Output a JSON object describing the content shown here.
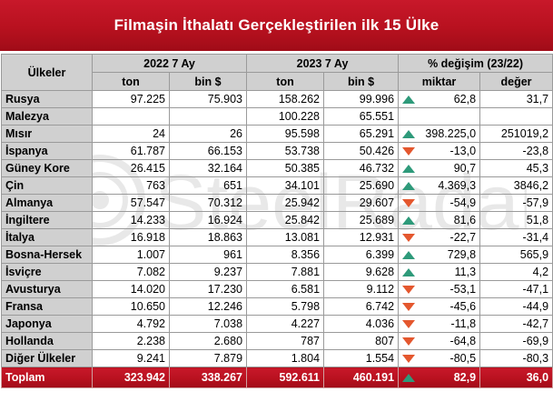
{
  "title": "Filmaşin İthalatı Gerçekleştirilen ilk 15 Ülke",
  "header": {
    "countries": "Ülkeler",
    "period1": "2022 7 Ay",
    "period2": "2023 7 Ay",
    "change": "% değişim (23/22)",
    "ton1": "ton",
    "usd1": "bin $",
    "ton2": "ton",
    "usd2": "bin $",
    "qty": "miktar",
    "val": "değer"
  },
  "rows": [
    {
      "name": "Rusya",
      "t22": "97.225",
      "u22": "75.903",
      "t23": "158.262",
      "u23": "99.996",
      "trend": "up",
      "qty": "62,8",
      "val": "31,7"
    },
    {
      "name": "Malezya",
      "t22": "",
      "u22": "",
      "t23": "100.228",
      "u23": "65.551",
      "trend": "none",
      "qty": "",
      "val": ""
    },
    {
      "name": "Mısır",
      "t22": "24",
      "u22": "26",
      "t23": "95.598",
      "u23": "65.291",
      "trend": "up",
      "qty": "398.225,0",
      "val": "251019,2"
    },
    {
      "name": "İspanya",
      "t22": "61.787",
      "u22": "66.153",
      "t23": "53.738",
      "u23": "50.426",
      "trend": "down",
      "qty": "-13,0",
      "val": "-23,8"
    },
    {
      "name": "Güney Kore",
      "t22": "26.415",
      "u22": "32.164",
      "t23": "50.385",
      "u23": "46.732",
      "trend": "up",
      "qty": "90,7",
      "val": "45,3"
    },
    {
      "name": "Çin",
      "t22": "763",
      "u22": "651",
      "t23": "34.101",
      "u23": "25.690",
      "trend": "up",
      "qty": "4.369,3",
      "val": "3846,2"
    },
    {
      "name": "Almanya",
      "t22": "57.547",
      "u22": "70.312",
      "t23": "25.942",
      "u23": "29.607",
      "trend": "down",
      "qty": "-54,9",
      "val": "-57,9"
    },
    {
      "name": "İngiltere",
      "t22": "14.233",
      "u22": "16.924",
      "t23": "25.842",
      "u23": "25.689",
      "trend": "up",
      "qty": "81,6",
      "val": "51,8"
    },
    {
      "name": "İtalya",
      "t22": "16.918",
      "u22": "18.863",
      "t23": "13.081",
      "u23": "12.931",
      "trend": "down",
      "qty": "-22,7",
      "val": "-31,4"
    },
    {
      "name": "Bosna-Hersek",
      "t22": "1.007",
      "u22": "961",
      "t23": "8.356",
      "u23": "6.399",
      "trend": "up",
      "qty": "729,8",
      "val": "565,9"
    },
    {
      "name": "İsviçre",
      "t22": "7.082",
      "u22": "9.237",
      "t23": "7.881",
      "u23": "9.628",
      "trend": "up",
      "qty": "11,3",
      "val": "4,2"
    },
    {
      "name": "Avusturya",
      "t22": "14.020",
      "u22": "17.230",
      "t23": "6.581",
      "u23": "9.112",
      "trend": "down",
      "qty": "-53,1",
      "val": "-47,1"
    },
    {
      "name": "Fransa",
      "t22": "10.650",
      "u22": "12.246",
      "t23": "5.798",
      "u23": "6.742",
      "trend": "down",
      "qty": "-45,6",
      "val": "-44,9"
    },
    {
      "name": "Japonya",
      "t22": "4.792",
      "u22": "7.038",
      "t23": "4.227",
      "u23": "4.036",
      "trend": "down",
      "qty": "-11,8",
      "val": "-42,7"
    },
    {
      "name": "Hollanda",
      "t22": "2.238",
      "u22": "2.680",
      "t23": "787",
      "u23": "807",
      "trend": "down",
      "qty": "-64,8",
      "val": "-69,9"
    },
    {
      "name": "Diğer Ülkeler",
      "t22": "9.241",
      "u22": "7.879",
      "t23": "1.804",
      "u23": "1.554",
      "trend": "down",
      "qty": "-80,5",
      "val": "-80,3"
    }
  ],
  "total": {
    "name": "Toplam",
    "t22": "323.942",
    "u22": "338.267",
    "t23": "592.611",
    "u23": "460.191",
    "trend": "up",
    "qty": "82,9",
    "val": "36,0"
  },
  "watermark": "SteelRadar",
  "colors": {
    "title_red": "#b8111f",
    "up_arrow": "#2e9a7a",
    "down_arrow": "#e4572e",
    "header_gray": "#d0d0d0"
  }
}
